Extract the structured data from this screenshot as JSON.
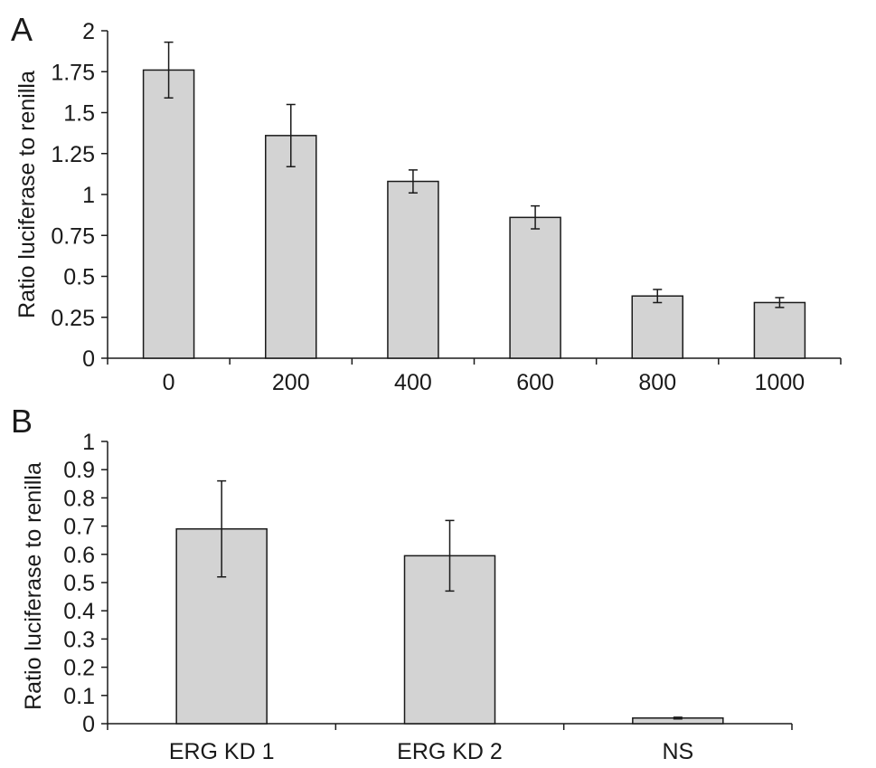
{
  "panels": [
    {
      "letter": "A"
    },
    {
      "letter": "B"
    }
  ],
  "chart_data": [
    {
      "type": "bar",
      "panel": "A",
      "categories": [
        "0",
        "200",
        "400",
        "600",
        "800",
        "1000"
      ],
      "values": [
        1.76,
        1.36,
        1.08,
        0.86,
        0.38,
        0.34
      ],
      "errors": [
        0.17,
        0.19,
        0.07,
        0.07,
        0.04,
        0.03
      ],
      "ylabel": "Ratio luciferase to renilla",
      "xlabel": "",
      "ylim": [
        0,
        2
      ],
      "yticks": [
        "0",
        "0.25",
        "0.5",
        "0.75",
        "1",
        "1.25",
        "1.5",
        "1.75",
        "2"
      ],
      "grid": false,
      "bar_color": "#d3d3d3"
    },
    {
      "type": "bar",
      "panel": "B",
      "categories": [
        "ERG KD 1",
        "ERG KD 2",
        "NS"
      ],
      "values": [
        0.69,
        0.595,
        0.02
      ],
      "errors": [
        0.17,
        0.125,
        0.003
      ],
      "ylabel": "Ratio luciferase to renilla",
      "xlabel": "",
      "ylim": [
        0,
        1
      ],
      "yticks": [
        "0",
        "0.1",
        "0.2",
        "0.3",
        "0.4",
        "0.5",
        "0.6",
        "0.7",
        "0.8",
        "0.9",
        "1"
      ],
      "grid": false,
      "bar_color": "#d3d3d3"
    }
  ]
}
